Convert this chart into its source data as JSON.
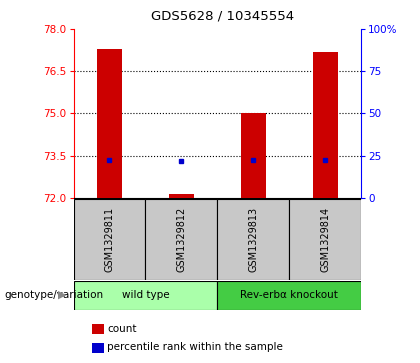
{
  "title": "GDS5628 / 10345554",
  "samples": [
    "GSM1329811",
    "GSM1329812",
    "GSM1329813",
    "GSM1329814"
  ],
  "count_values": [
    77.3,
    72.15,
    75.0,
    77.2
  ],
  "count_base": 72.0,
  "percentile_values": [
    73.35,
    73.3,
    73.35,
    73.35
  ],
  "ylim_left": [
    72,
    78
  ],
  "ylim_right": [
    0,
    100
  ],
  "yticks_left": [
    72,
    73.5,
    75,
    76.5,
    78
  ],
  "yticks_right": [
    0,
    25,
    50,
    75,
    100
  ],
  "ytick_labels_right": [
    "0",
    "25",
    "50",
    "75",
    "100%"
  ],
  "bar_color": "#cc0000",
  "dot_color": "#0000cc",
  "grid_color": "#000000",
  "groups": [
    {
      "label": "wild type",
      "samples": [
        0,
        1
      ],
      "color": "#aaffaa"
    },
    {
      "label": "Rev-erbα knockout",
      "samples": [
        2,
        3
      ],
      "color": "#44cc44"
    }
  ],
  "group_label": "genotype/variation",
  "legend_items": [
    {
      "color": "#cc0000",
      "label": "count"
    },
    {
      "color": "#0000cc",
      "label": "percentile rank within the sample"
    }
  ],
  "sample_bg": "#c8c8c8",
  "bar_width": 0.35
}
